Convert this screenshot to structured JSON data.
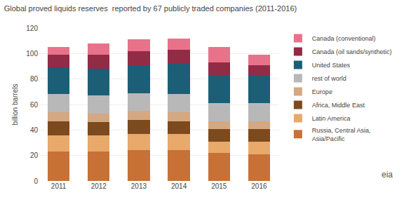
{
  "chart_data": {
    "type": "bar",
    "stacked": true,
    "title": "Global proved liquids reserves  reported by 67 publicly traded companies (2011-2016)",
    "ylabel": "billion barrels",
    "categories": [
      2011,
      2012,
      2013,
      2014,
      2015,
      2016
    ],
    "series": [
      {
        "name": "Russia, Central Asia,\nAsia/Pacific",
        "color": "#C87137",
        "values": [
          23,
          23,
          24,
          24,
          22,
          21
        ]
      },
      {
        "name": "Latin America",
        "color": "#E8A96A",
        "values": [
          13,
          13,
          13,
          13,
          9,
          10
        ]
      },
      {
        "name": "Africa, Middle East",
        "color": "#7B4A1E",
        "values": [
          11,
          10,
          11,
          10,
          10,
          10
        ]
      },
      {
        "name": "Europe",
        "color": "#D4A882",
        "values": [
          7,
          7,
          7,
          7,
          6,
          6
        ]
      },
      {
        "name": "rest of world",
        "color": "#B8B8B8",
        "values": [
          14,
          14,
          14,
          14,
          14,
          14
        ]
      },
      {
        "name": "United States",
        "color": "#1B5E75",
        "values": [
          21,
          21,
          22,
          24,
          22,
          22
        ]
      },
      {
        "name": "Canada (oil sands/synthetic)",
        "color": "#922B45",
        "values": [
          10,
          11,
          11,
          11,
          10,
          8
        ]
      },
      {
        "name": "Canada (conventional)",
        "color": "#E8728A",
        "values": [
          6,
          9,
          9,
          9,
          12,
          8
        ]
      }
    ],
    "ylim": [
      0,
      120
    ],
    "yticks": [
      0,
      20,
      40,
      60,
      80,
      100,
      120
    ],
    "grid": true,
    "legend": "right",
    "annotations": [
      "eia"
    ]
  }
}
